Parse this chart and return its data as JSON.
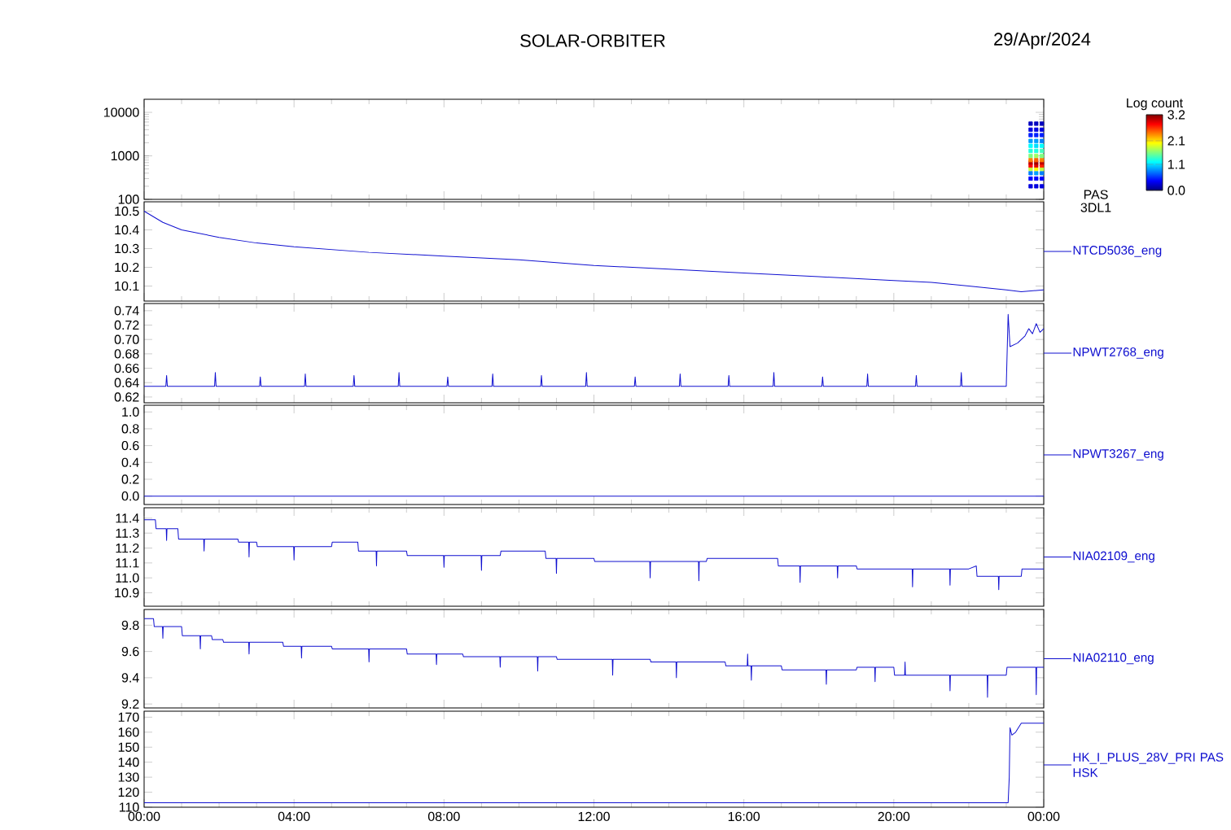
{
  "chart_data": [
    {
      "type": "scatter",
      "title": "SOLAR-ORBITER",
      "subtitle": "29/Apr/2024",
      "log": "y",
      "marker": "square",
      "clabel": "Log count",
      "clim": [
        0,
        3.2
      ],
      "cticks": [
        {
          "value": 0,
          "label": "0.0"
        },
        {
          "value": 1.1,
          "label": "1.1"
        },
        {
          "value": 2.1,
          "label": "2.1"
        },
        {
          "value": 3.2,
          "label": "3.2"
        }
      ],
      "xlim": [
        0,
        24
      ],
      "xticks": [
        {
          "value": 0,
          "label": null
        },
        {
          "value": 4,
          "label": null
        },
        {
          "value": 8,
          "label": null
        },
        {
          "value": 12,
          "label": null
        },
        {
          "value": 16,
          "label": null
        },
        {
          "value": 20,
          "label": null
        },
        {
          "value": 24,
          "label": null
        }
      ],
      "ylim": [
        100,
        20000
      ],
      "yticks": [
        100,
        1000,
        10000
      ],
      "tick_labels": "y",
      "series": [
        {
          "name": "PAS 3DL1",
          "x": [
            23.65,
            23.65,
            23.65,
            23.65,
            23.65,
            23.65,
            23.65,
            23.65,
            23.65,
            23.65,
            23.65,
            23.65,
            23.65,
            23.65,
            23.8,
            23.8,
            23.8,
            23.8,
            23.8,
            23.8,
            23.8,
            23.8,
            23.8,
            23.8,
            23.8,
            23.8,
            23.8,
            23.8,
            23.95,
            23.95,
            23.95,
            23.95,
            23.95,
            23.95,
            23.95,
            23.95,
            23.95,
            23.95,
            23.95,
            23.95,
            23.95,
            23.95
          ],
          "values": [
            200,
            300,
            400,
            500,
            600,
            700,
            800,
            1000,
            1300,
            1700,
            2200,
            3000,
            4000,
            5500,
            200,
            300,
            400,
            500,
            600,
            700,
            800,
            1000,
            1300,
            1700,
            2200,
            3000,
            4000,
            5500,
            200,
            300,
            400,
            500,
            600,
            700,
            800,
            1000,
            1300,
            1700,
            2200,
            3000,
            4000,
            5500
          ],
          "cvalues": [
            0.3,
            0.4,
            0.8,
            1.8,
            2.8,
            3.0,
            2.4,
            1.6,
            1.3,
            1.2,
            0.9,
            0.5,
            0.3,
            0.2,
            0.3,
            0.4,
            0.9,
            2.0,
            2.9,
            3.1,
            2.5,
            1.7,
            1.3,
            1.1,
            0.9,
            0.5,
            0.3,
            0.2,
            0.3,
            0.4,
            0.8,
            1.8,
            2.7,
            3.0,
            2.4,
            1.6,
            1.4,
            1.2,
            0.8,
            0.5,
            0.3,
            0.2
          ]
        }
      ]
    },
    {
      "type": "line",
      "xlim": [
        0,
        24
      ],
      "xticks": [
        {
          "value": 0,
          "label": null
        },
        {
          "value": 4,
          "label": null
        },
        {
          "value": 8,
          "label": null
        },
        {
          "value": 12,
          "label": null
        },
        {
          "value": 16,
          "label": null
        },
        {
          "value": 20,
          "label": null
        },
        {
          "value": 24,
          "label": null
        }
      ],
      "ylim": [
        10.02,
        10.55
      ],
      "yticks": [
        10.1,
        10.2,
        10.3,
        10.4,
        10.5
      ],
      "tick_labels": "y",
      "series": [
        {
          "name": "NTCD5036_eng",
          "color": "#1010d0",
          "x": [
            0,
            0.5,
            1,
            2,
            3,
            4,
            6,
            8,
            10,
            12,
            14,
            16,
            18,
            20,
            21,
            22,
            23,
            23.4,
            24
          ],
          "values": [
            10.5,
            10.44,
            10.4,
            10.36,
            10.33,
            10.31,
            10.28,
            10.26,
            10.24,
            10.21,
            10.19,
            10.17,
            10.15,
            10.13,
            10.12,
            10.1,
            10.08,
            10.07,
            10.08
          ]
        }
      ]
    },
    {
      "type": "line",
      "xlim": [
        0,
        24
      ],
      "xticks": [
        {
          "value": 0,
          "label": null
        },
        {
          "value": 4,
          "label": null
        },
        {
          "value": 8,
          "label": null
        },
        {
          "value": 12,
          "label": null
        },
        {
          "value": 16,
          "label": null
        },
        {
          "value": 20,
          "label": null
        },
        {
          "value": 24,
          "label": null
        }
      ],
      "ylim": [
        0.612,
        0.75
      ],
      "yticks": [
        {
          "value": 0.62,
          "label": "0.62"
        },
        {
          "value": 0.64,
          "label": "0.64"
        },
        {
          "value": 0.66,
          "label": "0.66"
        },
        {
          "value": 0.68,
          "label": "0.68"
        },
        {
          "value": 0.7,
          "label": "0.70"
        },
        {
          "value": 0.72,
          "label": "0.72"
        },
        {
          "value": 0.74,
          "label": "0.74"
        }
      ],
      "tick_labels": "y",
      "series": [
        {
          "name": "NPWT2768_eng",
          "color": "#1010d0",
          "x": [
            0,
            0.58,
            0.6,
            0.62,
            1.88,
            1.9,
            1.92,
            3.08,
            3.1,
            3.12,
            4.28,
            4.3,
            4.32,
            5.58,
            5.6,
            5.62,
            6.78,
            6.8,
            6.82,
            8.08,
            8.1,
            8.12,
            9.28,
            9.3,
            9.32,
            10.58,
            10.6,
            10.62,
            11.78,
            11.8,
            11.82,
            13.08,
            13.1,
            13.12,
            14.28,
            14.3,
            14.32,
            15.58,
            15.6,
            15.62,
            16.78,
            16.8,
            16.82,
            18.08,
            18.1,
            18.12,
            19.28,
            19.3,
            19.32,
            20.58,
            20.6,
            20.62,
            21.78,
            21.8,
            21.82,
            23.0,
            23.05,
            23.1,
            23.3,
            23.5,
            23.6,
            23.7,
            23.8,
            23.9,
            24
          ],
          "values": [
            0.635,
            0.635,
            0.65,
            0.635,
            0.635,
            0.654,
            0.635,
            0.635,
            0.648,
            0.635,
            0.635,
            0.652,
            0.635,
            0.635,
            0.65,
            0.635,
            0.635,
            0.654,
            0.635,
            0.635,
            0.648,
            0.635,
            0.635,
            0.652,
            0.635,
            0.635,
            0.65,
            0.635,
            0.635,
            0.654,
            0.635,
            0.635,
            0.648,
            0.635,
            0.635,
            0.652,
            0.635,
            0.635,
            0.65,
            0.635,
            0.635,
            0.654,
            0.635,
            0.635,
            0.648,
            0.635,
            0.635,
            0.652,
            0.635,
            0.635,
            0.65,
            0.635,
            0.635,
            0.654,
            0.635,
            0.635,
            0.735,
            0.69,
            0.695,
            0.705,
            0.715,
            0.708,
            0.722,
            0.71,
            0.715
          ]
        }
      ]
    },
    {
      "type": "line",
      "xlim": [
        0,
        24
      ],
      "xticks": [
        {
          "value": 0,
          "label": null
        },
        {
          "value": 4,
          "label": null
        },
        {
          "value": 8,
          "label": null
        },
        {
          "value": 12,
          "label": null
        },
        {
          "value": 16,
          "label": null
        },
        {
          "value": 20,
          "label": null
        },
        {
          "value": 24,
          "label": null
        }
      ],
      "ylim": [
        -0.1,
        1.08
      ],
      "yticks": [
        {
          "value": 0,
          "label": "0.0"
        },
        {
          "value": 0.2,
          "label": "0.2"
        },
        {
          "value": 0.4,
          "label": "0.4"
        },
        {
          "value": 0.6,
          "label": "0.6"
        },
        {
          "value": 0.8,
          "label": "0.8"
        },
        {
          "value": 1,
          "label": "1.0"
        }
      ],
      "tick_labels": "y",
      "series": [
        {
          "name": "NPWT3267_eng",
          "color": "#1010d0",
          "x": [
            0,
            24
          ],
          "values": [
            0,
            0
          ]
        }
      ]
    },
    {
      "type": "line",
      "xlim": [
        0,
        24
      ],
      "xticks": [
        {
          "value": 0,
          "label": null
        },
        {
          "value": 4,
          "label": null
        },
        {
          "value": 8,
          "label": null
        },
        {
          "value": 12,
          "label": null
        },
        {
          "value": 16,
          "label": null
        },
        {
          "value": 20,
          "label": null
        },
        {
          "value": 24,
          "label": null
        }
      ],
      "ylim": [
        10.81,
        11.47
      ],
      "yticks": [
        10.9,
        {
          "value": 11.0,
          "label": "11.0"
        },
        11.1,
        11.2,
        11.3,
        11.4
      ],
      "tick_labels": "y",
      "series": [
        {
          "name": "NIA02109_eng",
          "color": "#1010d0",
          "x": [
            0,
            0.3,
            0.32,
            0.59,
            0.6,
            0.61,
            0.9,
            0.92,
            1.59,
            1.6,
            1.61,
            2.5,
            2.52,
            2.79,
            2.8,
            2.81,
            3.0,
            3.02,
            3.99,
            4.0,
            4.01,
            5.0,
            5.02,
            5.7,
            5.72,
            6.19,
            6.2,
            6.21,
            7.0,
            7.02,
            7.99,
            8.0,
            8.01,
            8.99,
            9.0,
            9.01,
            9.5,
            9.52,
            10.7,
            10.72,
            10.99,
            11.0,
            11.01,
            12.0,
            12.02,
            13.49,
            13.5,
            13.51,
            14.79,
            14.8,
            14.81,
            15.0,
            15.02,
            16.9,
            16.92,
            17.49,
            17.5,
            17.51,
            18.49,
            18.5,
            18.51,
            19.0,
            19.02,
            20.49,
            20.5,
            20.51,
            21.49,
            21.5,
            21.51,
            22.0,
            22.2,
            22.22,
            22.79,
            22.8,
            22.81,
            23.4,
            23.42,
            24
          ],
          "values": [
            11.39,
            11.39,
            11.33,
            11.33,
            11.25,
            11.33,
            11.33,
            11.26,
            11.26,
            11.18,
            11.26,
            11.26,
            11.24,
            11.24,
            11.14,
            11.24,
            11.24,
            11.21,
            11.21,
            11.12,
            11.21,
            11.21,
            11.24,
            11.24,
            11.18,
            11.18,
            11.08,
            11.18,
            11.18,
            11.15,
            11.15,
            11.07,
            11.15,
            11.15,
            11.05,
            11.15,
            11.15,
            11.18,
            11.18,
            11.13,
            11.13,
            11.03,
            11.13,
            11.13,
            11.11,
            11.11,
            11.0,
            11.11,
            11.11,
            10.98,
            11.11,
            11.11,
            11.13,
            11.13,
            11.08,
            11.08,
            10.97,
            11.08,
            11.08,
            11.0,
            11.08,
            11.08,
            11.06,
            11.06,
            10.94,
            11.06,
            11.06,
            10.95,
            11.06,
            11.06,
            11.08,
            11.01,
            11.01,
            10.92,
            11.01,
            11.01,
            11.06,
            11.06
          ]
        }
      ]
    },
    {
      "type": "line",
      "xlim": [
        0,
        24
      ],
      "xticks": [
        {
          "value": 0,
          "label": null
        },
        {
          "value": 4,
          "label": null
        },
        {
          "value": 8,
          "label": null
        },
        {
          "value": 12,
          "label": null
        },
        {
          "value": 16,
          "label": null
        },
        {
          "value": 20,
          "label": null
        },
        {
          "value": 24,
          "label": null
        }
      ],
      "ylim": [
        9.17,
        9.92
      ],
      "yticks": [
        9.2,
        9.4,
        9.6,
        9.8
      ],
      "tick_labels": "y",
      "series": [
        {
          "name": "NIA02110_eng",
          "color": "#1010d0",
          "x": [
            0,
            0.25,
            0.27,
            0.49,
            0.5,
            0.51,
            1.0,
            1.02,
            1.49,
            1.5,
            1.51,
            1.8,
            1.82,
            2.1,
            2.12,
            2.79,
            2.8,
            2.81,
            3.7,
            3.72,
            4.19,
            4.2,
            4.21,
            5.0,
            5.02,
            5.99,
            6.0,
            6.01,
            7.0,
            7.02,
            7.79,
            7.8,
            7.81,
            8.5,
            8.52,
            9.49,
            9.5,
            9.51,
            10.49,
            10.5,
            10.51,
            11.0,
            11.02,
            12.49,
            12.5,
            12.51,
            13.5,
            13.52,
            14.19,
            14.2,
            14.21,
            15.5,
            15.52,
            16.09,
            16.1,
            16.11,
            16.19,
            16.2,
            16.21,
            17.0,
            17.02,
            18.19,
            18.2,
            18.21,
            19.0,
            19.02,
            19.49,
            19.5,
            19.51,
            20.0,
            20.02,
            20.29,
            20.3,
            20.31,
            21.49,
            21.5,
            21.51,
            22.49,
            22.5,
            22.51,
            23.0,
            23.02,
            23.79,
            23.8,
            23.81,
            24
          ],
          "values": [
            9.85,
            9.85,
            9.79,
            9.79,
            9.7,
            9.79,
            9.79,
            9.72,
            9.72,
            9.62,
            9.72,
            9.72,
            9.69,
            9.69,
            9.67,
            9.67,
            9.58,
            9.67,
            9.67,
            9.64,
            9.64,
            9.55,
            9.64,
            9.64,
            9.62,
            9.62,
            9.52,
            9.62,
            9.62,
            9.58,
            9.58,
            9.5,
            9.58,
            9.58,
            9.56,
            9.56,
            9.48,
            9.56,
            9.56,
            9.45,
            9.56,
            9.56,
            9.54,
            9.54,
            9.42,
            9.54,
            9.54,
            9.52,
            9.52,
            9.4,
            9.52,
            9.52,
            9.49,
            9.49,
            9.58,
            9.49,
            9.49,
            9.38,
            9.49,
            9.49,
            9.46,
            9.46,
            9.35,
            9.46,
            9.46,
            9.48,
            9.48,
            9.37,
            9.48,
            9.48,
            9.42,
            9.42,
            9.52,
            9.42,
            9.42,
            9.3,
            9.42,
            9.42,
            9.25,
            9.42,
            9.42,
            9.48,
            9.48,
            9.27,
            9.48,
            9.48
          ]
        }
      ]
    },
    {
      "type": "line",
      "xlim": [
        0,
        24
      ],
      "xticks": [
        {
          "value": 0,
          "label": "00:00"
        },
        {
          "value": 4,
          "label": "04:00"
        },
        {
          "value": 8,
          "label": "08:00"
        },
        {
          "value": 12,
          "label": "12:00"
        },
        {
          "value": 16,
          "label": "16:00"
        },
        {
          "value": 20,
          "label": "20:00"
        },
        {
          "value": 24,
          "label": "00:00"
        }
      ],
      "ylim": [
        110,
        174
      ],
      "yticks": [
        110,
        120,
        130,
        140,
        150,
        160,
        170
      ],
      "series": [
        {
          "name": "HK_I_PLUS_28V_PRI PAS HSK",
          "color": "#1010d0",
          "x": [
            0,
            23.05,
            23.08,
            23.1,
            23.15,
            23.25,
            23.4,
            24
          ],
          "values": [
            113,
            113,
            130,
            163,
            158,
            160,
            166,
            166
          ]
        }
      ]
    }
  ]
}
